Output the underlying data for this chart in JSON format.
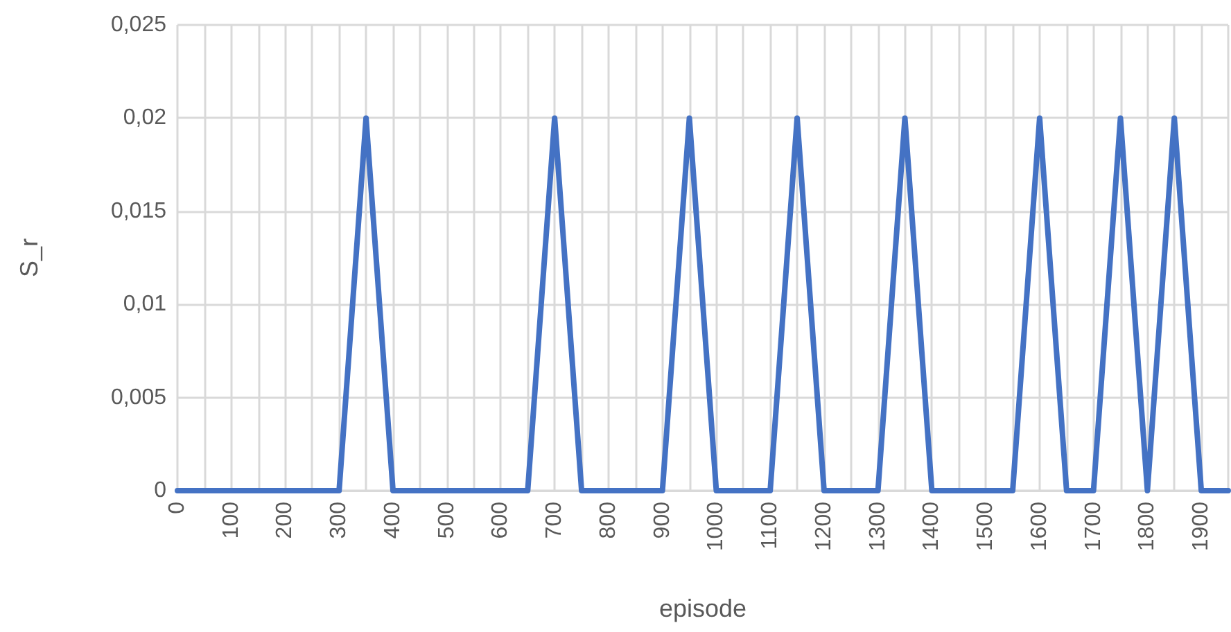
{
  "chart_data": {
    "type": "line",
    "xlabel": "episode",
    "ylabel": "S_r",
    "categories": [
      "0",
      null,
      "100",
      null,
      "200",
      null,
      "300",
      null,
      "400",
      null,
      "500",
      null,
      "600",
      null,
      "700",
      null,
      "800",
      null,
      "900",
      null,
      "1000",
      null,
      "1100",
      null,
      "1200",
      null,
      "1300",
      null,
      "1400",
      null,
      "1500",
      null,
      "1600",
      null,
      "1700",
      null,
      "1800",
      null,
      "1900",
      null
    ],
    "series": [
      {
        "color": "#4472c4",
        "values": [
          0,
          0,
          0,
          0,
          0,
          0,
          0,
          0.02,
          0,
          0,
          0,
          0,
          0,
          0,
          0.02,
          0,
          0,
          0,
          0,
          0.02,
          0,
          0,
          0,
          0.02,
          0,
          0,
          0,
          0.02,
          0,
          0,
          0,
          0,
          0.02,
          0,
          0,
          0.02,
          0,
          0.02,
          0,
          0
        ]
      }
    ],
    "ylim": [
      0,
      0.025
    ],
    "yticks": [
      {
        "value": 0,
        "label": "0"
      },
      {
        "value": 0.005,
        "label": "0,005"
      },
      {
        "value": 0.01,
        "label": "0,01"
      },
      {
        "value": 0.015,
        "label": "0,015"
      },
      {
        "value": 0.02,
        "label": "0,02"
      },
      {
        "value": 0.025,
        "label": "0,025"
      }
    ],
    "grid": true,
    "marker": "none",
    "line_style": "solid"
  }
}
